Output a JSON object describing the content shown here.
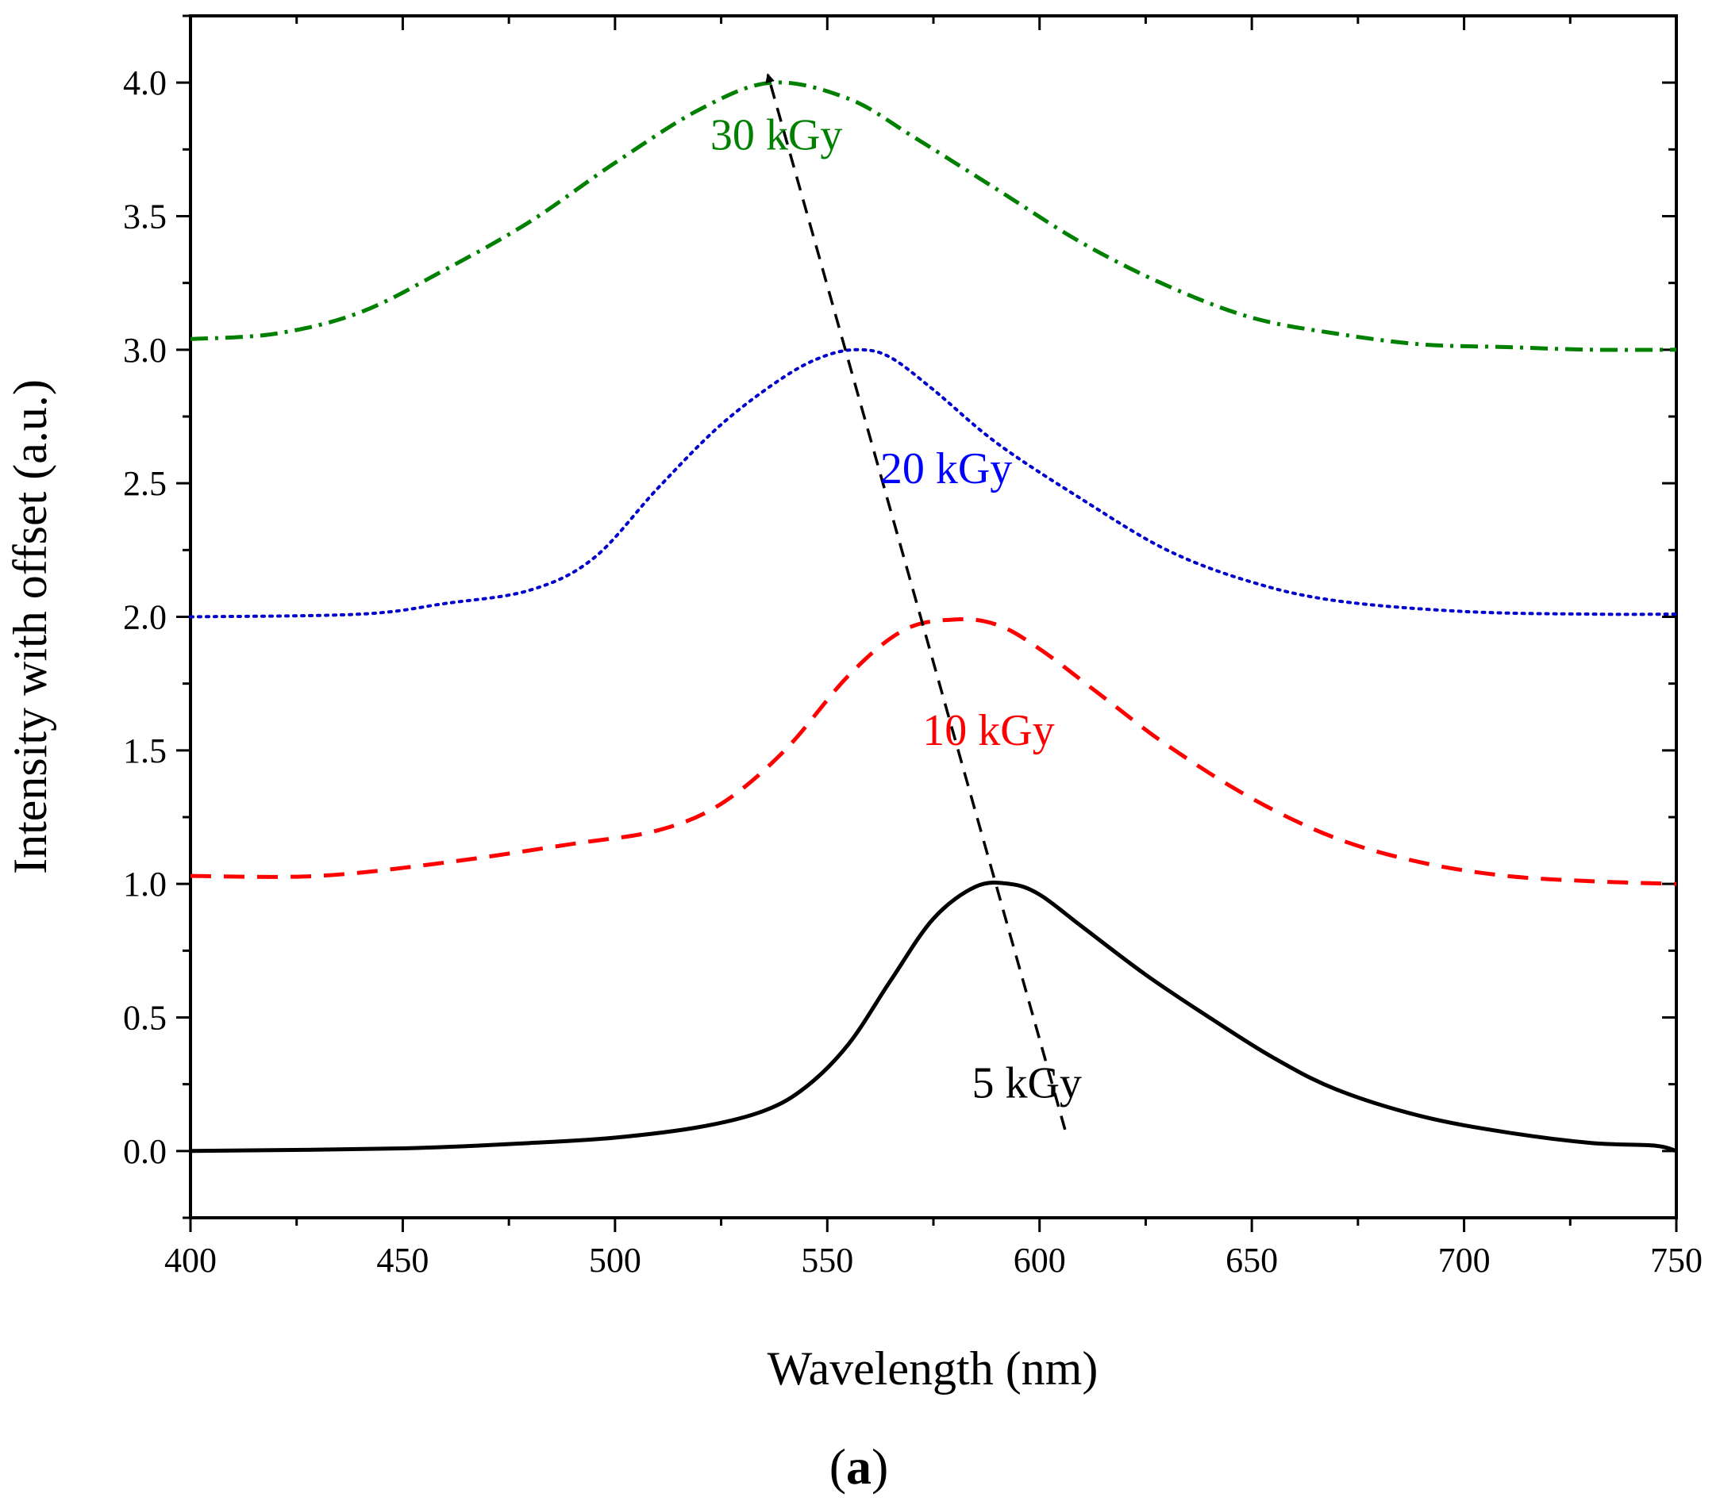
{
  "chart_data": {
    "type": "line",
    "xlabel": "Wavelength (nm)",
    "ylabel": "Intensity with offset (a.u.)",
    "panel_label": "(a)",
    "panel_label_parts": {
      "open": "(",
      "letter": "a",
      "close": ")"
    },
    "xlim": [
      400,
      750
    ],
    "ylim": [
      -0.25,
      4.25
    ],
    "x_ticks": [
      400,
      450,
      500,
      550,
      600,
      650,
      700,
      750
    ],
    "x_tick_labels": [
      "400",
      "450",
      "500",
      "550",
      "600",
      "650",
      "700",
      "750"
    ],
    "y_ticks": [
      0,
      0.5,
      1,
      1.5,
      2,
      2.5,
      3,
      3.5,
      4
    ],
    "y_tick_labels": [
      "0.0",
      "0.5",
      "1.0",
      "1.5",
      "2.0",
      "2.5",
      "3.0",
      "3.5",
      "4.0"
    ],
    "series": [
      {
        "name": "5 kGy",
        "color": "#000000",
        "dash": "solid",
        "x": [
          400,
          450,
          480,
          500,
          520,
          535,
          545,
          555,
          565,
          575,
          585,
          593,
          600,
          610,
          625,
          640,
          655,
          670,
          690,
          710,
          730,
          745,
          750
        ],
        "y": [
          0.0,
          0.01,
          0.03,
          0.05,
          0.09,
          0.15,
          0.24,
          0.4,
          0.64,
          0.87,
          0.99,
          1.0,
          0.96,
          0.84,
          0.66,
          0.5,
          0.35,
          0.23,
          0.13,
          0.07,
          0.03,
          0.02,
          0.0
        ]
      },
      {
        "name": "10 kGy",
        "color": "#ff0000",
        "dash": "dashed",
        "x": [
          400,
          430,
          460,
          490,
          510,
          525,
          540,
          555,
          568,
          580,
          590,
          600,
          615,
          630,
          650,
          670,
          690,
          710,
          730,
          750
        ],
        "y": [
          1.03,
          1.03,
          1.08,
          1.15,
          1.2,
          1.3,
          1.5,
          1.78,
          1.95,
          1.99,
          1.97,
          1.88,
          1.7,
          1.52,
          1.32,
          1.17,
          1.08,
          1.03,
          1.01,
          1.0
        ]
      },
      {
        "name": "20 kGy",
        "color": "#0000cc",
        "dash": "dotted",
        "x": [
          400,
          440,
          460,
          480,
          495,
          510,
          525,
          540,
          550,
          558,
          565,
          575,
          590,
          610,
          630,
          650,
          670,
          700,
          730,
          750
        ],
        "y": [
          2.0,
          2.01,
          2.05,
          2.1,
          2.22,
          2.48,
          2.72,
          2.9,
          2.98,
          3.0,
          2.97,
          2.85,
          2.65,
          2.44,
          2.25,
          2.13,
          2.06,
          2.02,
          2.01,
          2.01
        ]
      },
      {
        "name": "30 kGy",
        "color": "#008000",
        "dash": "dashdot",
        "x": [
          400,
          420,
          440,
          460,
          480,
          500,
          520,
          537,
          555,
          570,
          590,
          610,
          630,
          650,
          670,
          690,
          710,
          730,
          750
        ],
        "y": [
          3.04,
          3.06,
          3.14,
          3.3,
          3.48,
          3.7,
          3.9,
          4.0,
          3.94,
          3.8,
          3.6,
          3.4,
          3.24,
          3.12,
          3.06,
          3.02,
          3.01,
          3.0,
          3.0
        ]
      }
    ],
    "annotations": [
      {
        "text": "30 kGy",
        "color": "#008000",
        "x": 538,
        "y": 3.75
      },
      {
        "text": "20 kGy",
        "color": "#0000ff",
        "x": 578,
        "y": 2.5
      },
      {
        "text": "10 kGy",
        "color": "#ff0000",
        "x": 588,
        "y": 1.52
      },
      {
        "text": "5 kGy",
        "color": "#000000",
        "x": 597,
        "y": 0.2
      }
    ],
    "arrow": {
      "from": [
        606,
        0.08
      ],
      "to": [
        536,
        4.03
      ],
      "style": "dashed",
      "color": "#000000"
    }
  }
}
